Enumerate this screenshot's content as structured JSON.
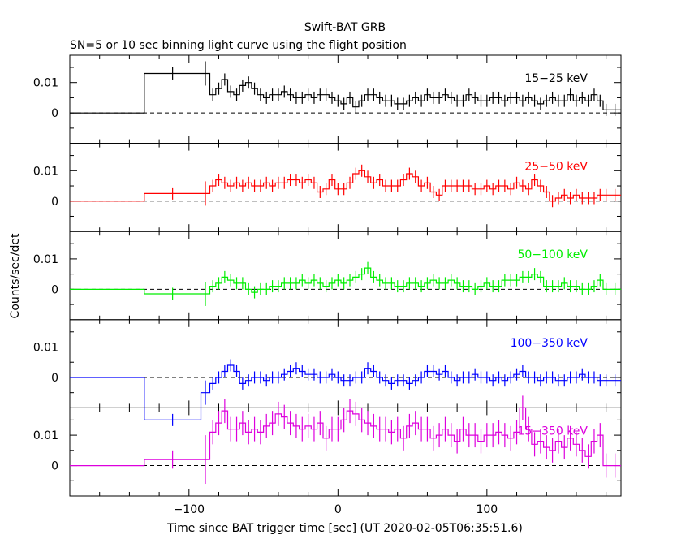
{
  "title": "Swift-BAT GRB",
  "subtitle": "SN=5 or 10 sec binning light curve using the flight position",
  "xlabel": "Time since BAT trigger time [sec] (UT 2020-02-05T06:35:51.6)",
  "ylabel": "Counts/sec/det",
  "chart_data": {
    "type": "line",
    "style": "step histogram with error bars, stacked panels",
    "xlim": [
      -180,
      190
    ],
    "x_ticks": [
      -100,
      0,
      100
    ],
    "x_tick_labels": [
      "−100",
      "0",
      "100"
    ],
    "panels": [
      {
        "name": "15−25 keV",
        "color": "#000000",
        "ylim": [
          -0.01,
          0.019
        ],
        "y_ticks": [
          0,
          0.01
        ],
        "y_tick_labels": [
          "0",
          "0.01"
        ],
        "edges": [
          -180,
          -130,
          -92,
          -86,
          -82,
          -78,
          -74,
          -70,
          -66,
          -62,
          -58,
          -54,
          -50,
          -46,
          -42,
          -38,
          -34,
          -30,
          -26,
          -22,
          -18,
          -14,
          -10,
          -6,
          -2,
          2,
          6,
          10,
          14,
          18,
          22,
          26,
          30,
          34,
          38,
          42,
          46,
          50,
          54,
          58,
          62,
          66,
          70,
          74,
          78,
          82,
          86,
          90,
          94,
          98,
          102,
          106,
          110,
          114,
          118,
          122,
          126,
          130,
          134,
          138,
          142,
          146,
          150,
          154,
          158,
          162,
          166,
          170,
          174,
          178,
          182,
          190
        ],
        "values": [
          0,
          0.013,
          0.013,
          0.006,
          0.008,
          0.011,
          0.007,
          0.006,
          0.009,
          0.01,
          0.008,
          0.006,
          0.005,
          0.006,
          0.006,
          0.007,
          0.006,
          0.005,
          0.005,
          0.006,
          0.005,
          0.006,
          0.006,
          0.005,
          0.004,
          0.003,
          0.005,
          0.002,
          0.004,
          0.006,
          0.006,
          0.005,
          0.004,
          0.004,
          0.003,
          0.003,
          0.004,
          0.005,
          0.004,
          0.006,
          0.005,
          0.005,
          0.006,
          0.005,
          0.004,
          0.004,
          0.006,
          0.005,
          0.004,
          0.004,
          0.005,
          0.005,
          0.004,
          0.005,
          0.005,
          0.004,
          0.005,
          0.004,
          0.003,
          0.004,
          0.005,
          0.004,
          0.004,
          0.006,
          0.004,
          0.005,
          0.004,
          0.006,
          0.004,
          0.001,
          0.001
        ],
        "errors": [
          0.002,
          0.002,
          0.004,
          0.002,
          0.002,
          0.002,
          0.002,
          0.002,
          0.002,
          0.002,
          0.002,
          0.002,
          0.002,
          0.002,
          0.002,
          0.002,
          0.002,
          0.002,
          0.002,
          0.002,
          0.002,
          0.002,
          0.002,
          0.002,
          0.002,
          0.002,
          0.002,
          0.002,
          0.002,
          0.002,
          0.002,
          0.002,
          0.002,
          0.002,
          0.002,
          0.002,
          0.002,
          0.002,
          0.002,
          0.002,
          0.002,
          0.002,
          0.002,
          0.002,
          0.002,
          0.002,
          0.002,
          0.002,
          0.002,
          0.002,
          0.002,
          0.002,
          0.002,
          0.002,
          0.002,
          0.002,
          0.002,
          0.002,
          0.002,
          0.002,
          0.002,
          0.002,
          0.002,
          0.002,
          0.002,
          0.002,
          0.002,
          0.002,
          0.002,
          0.002,
          0.002
        ]
      },
      {
        "name": "25−50 keV",
        "color": "#ff0000",
        "ylim": [
          -0.01,
          0.019
        ],
        "y_ticks": [
          0,
          0.01
        ],
        "y_tick_labels": [
          "0",
          "0.01"
        ],
        "edges": [
          -180,
          -130,
          -92,
          -86,
          -82,
          -78,
          -74,
          -70,
          -66,
          -62,
          -58,
          -54,
          -50,
          -46,
          -42,
          -38,
          -34,
          -30,
          -26,
          -22,
          -18,
          -14,
          -10,
          -6,
          -2,
          2,
          6,
          10,
          14,
          18,
          22,
          26,
          30,
          34,
          38,
          42,
          46,
          50,
          54,
          58,
          62,
          66,
          70,
          74,
          78,
          82,
          86,
          90,
          94,
          98,
          102,
          106,
          110,
          114,
          118,
          122,
          126,
          130,
          134,
          138,
          142,
          146,
          150,
          154,
          158,
          162,
          166,
          170,
          174,
          178,
          182,
          190
        ],
        "values": [
          0,
          0.0025,
          0.0025,
          0.005,
          0.007,
          0.006,
          0.005,
          0.006,
          0.005,
          0.006,
          0.005,
          0.005,
          0.006,
          0.005,
          0.006,
          0.006,
          0.007,
          0.007,
          0.006,
          0.007,
          0.006,
          0.003,
          0.004,
          0.007,
          0.004,
          0.004,
          0.006,
          0.009,
          0.01,
          0.008,
          0.006,
          0.007,
          0.005,
          0.005,
          0.005,
          0.007,
          0.009,
          0.008,
          0.005,
          0.006,
          0.003,
          0.002,
          0.005,
          0.005,
          0.005,
          0.005,
          0.005,
          0.004,
          0.004,
          0.005,
          0.004,
          0.005,
          0.005,
          0.004,
          0.006,
          0.005,
          0.004,
          0.007,
          0.005,
          0.003,
          0,
          0.001,
          0.002,
          0.001,
          0.002,
          0.001,
          0.001,
          0.001,
          0.002,
          0.002,
          0.002
        ],
        "errors": [
          0.002,
          0.002,
          0.004,
          0.002,
          0.002,
          0.002,
          0.002,
          0.002,
          0.002,
          0.002,
          0.002,
          0.002,
          0.002,
          0.002,
          0.002,
          0.002,
          0.002,
          0.002,
          0.002,
          0.002,
          0.002,
          0.002,
          0.002,
          0.002,
          0.002,
          0.002,
          0.002,
          0.002,
          0.002,
          0.002,
          0.002,
          0.002,
          0.002,
          0.002,
          0.002,
          0.002,
          0.002,
          0.002,
          0.002,
          0.002,
          0.002,
          0.002,
          0.002,
          0.002,
          0.002,
          0.002,
          0.002,
          0.002,
          0.002,
          0.002,
          0.002,
          0.002,
          0.002,
          0.002,
          0.002,
          0.002,
          0.002,
          0.002,
          0.002,
          0.002,
          0.002,
          0.002,
          0.002,
          0.002,
          0.002,
          0.002,
          0.002,
          0.002,
          0.002,
          0.002,
          0.002
        ]
      },
      {
        "name": "50−100 keV",
        "color": "#00ee00",
        "ylim": [
          -0.01,
          0.019
        ],
        "y_ticks": [
          0,
          0.01
        ],
        "y_tick_labels": [
          "0",
          "0.01"
        ],
        "edges": [
          -180,
          -130,
          -92,
          -86,
          -82,
          -78,
          -74,
          -70,
          -66,
          -62,
          -58,
          -54,
          -50,
          -46,
          -42,
          -38,
          -34,
          -30,
          -26,
          -22,
          -18,
          -14,
          -10,
          -6,
          -2,
          2,
          6,
          10,
          14,
          18,
          22,
          26,
          30,
          34,
          38,
          42,
          46,
          50,
          54,
          58,
          62,
          66,
          70,
          74,
          78,
          82,
          86,
          90,
          94,
          98,
          102,
          106,
          110,
          114,
          118,
          122,
          126,
          130,
          134,
          138,
          142,
          146,
          150,
          154,
          158,
          162,
          166,
          170,
          174,
          178,
          182,
          190
        ],
        "values": [
          0,
          -0.0015,
          -0.0015,
          0.001,
          0.002,
          0.004,
          0.003,
          0.002,
          0.002,
          0,
          -0.001,
          0,
          0,
          0.001,
          0.001,
          0.002,
          0.002,
          0.002,
          0.003,
          0.002,
          0.003,
          0.002,
          0.001,
          0.002,
          0.003,
          0.002,
          0.003,
          0.004,
          0.005,
          0.007,
          0.004,
          0.003,
          0.002,
          0.002,
          0.001,
          0.001,
          0.002,
          0.002,
          0.001,
          0.002,
          0.003,
          0.002,
          0.002,
          0.003,
          0.002,
          0.001,
          0.001,
          0,
          0.001,
          0.002,
          0.001,
          0.001,
          0.003,
          0.003,
          0.003,
          0.004,
          0.004,
          0.005,
          0.004,
          0.001,
          0.001,
          0.001,
          0.002,
          0.001,
          0.001,
          0,
          0,
          0.001,
          0.003,
          0,
          0
        ],
        "errors": [
          0.002,
          0.002,
          0.004,
          0.002,
          0.002,
          0.002,
          0.002,
          0.002,
          0.002,
          0.002,
          0.002,
          0.002,
          0.002,
          0.002,
          0.002,
          0.002,
          0.002,
          0.002,
          0.002,
          0.002,
          0.002,
          0.002,
          0.002,
          0.002,
          0.002,
          0.002,
          0.002,
          0.002,
          0.002,
          0.002,
          0.002,
          0.002,
          0.002,
          0.002,
          0.002,
          0.002,
          0.002,
          0.002,
          0.002,
          0.002,
          0.002,
          0.002,
          0.002,
          0.002,
          0.002,
          0.002,
          0.002,
          0.002,
          0.002,
          0.002,
          0.002,
          0.002,
          0.002,
          0.002,
          0.002,
          0.002,
          0.002,
          0.002,
          0.002,
          0.002,
          0.002,
          0.002,
          0.002,
          0.002,
          0.002,
          0.002,
          0.002,
          0.002,
          0.002,
          0.002,
          0.002
        ]
      },
      {
        "name": "100−350 keV",
        "color": "#0000ff",
        "ylim": [
          -0.01,
          0.019
        ],
        "y_ticks": [
          0,
          0.01
        ],
        "y_tick_labels": [
          "0",
          "0.01"
        ],
        "edges": [
          -180,
          -130,
          -92,
          -86,
          -82,
          -78,
          -74,
          -70,
          -66,
          -62,
          -58,
          -54,
          -50,
          -46,
          -42,
          -38,
          -34,
          -30,
          -26,
          -22,
          -18,
          -14,
          -10,
          -6,
          -2,
          2,
          6,
          10,
          14,
          18,
          22,
          26,
          30,
          34,
          38,
          42,
          46,
          50,
          54,
          58,
          62,
          66,
          70,
          74,
          78,
          82,
          86,
          90,
          94,
          98,
          102,
          106,
          110,
          114,
          118,
          122,
          126,
          130,
          134,
          138,
          142,
          146,
          150,
          154,
          158,
          162,
          166,
          170,
          174,
          178,
          182,
          190
        ],
        "values": [
          0,
          -0.014,
          -0.005,
          -0.002,
          0,
          0.002,
          0.004,
          0.002,
          -0.002,
          -0.001,
          0,
          0,
          -0.001,
          0,
          0,
          0.001,
          0.002,
          0.003,
          0.002,
          0.001,
          0.001,
          0,
          0,
          0.001,
          0,
          -0.001,
          -0.001,
          0,
          0,
          0.003,
          0.002,
          0,
          -0.001,
          -0.002,
          -0.001,
          -0.001,
          -0.002,
          -0.001,
          0,
          0.002,
          0.002,
          0.001,
          0.002,
          0,
          -0.001,
          0,
          0,
          0.001,
          0,
          0,
          -0.001,
          0,
          -0.001,
          0,
          0.001,
          0.002,
          0,
          0,
          -0.001,
          0,
          0,
          -0.001,
          -0.001,
          0,
          0,
          0.001,
          0,
          0,
          -0.001,
          -0.001,
          -0.001
        ],
        "errors": [
          0.002,
          0.002,
          0.004,
          0.002,
          0.002,
          0.002,
          0.002,
          0.002,
          0.002,
          0.002,
          0.002,
          0.002,
          0.002,
          0.002,
          0.002,
          0.002,
          0.002,
          0.002,
          0.002,
          0.002,
          0.002,
          0.002,
          0.002,
          0.002,
          0.002,
          0.002,
          0.002,
          0.002,
          0.002,
          0.002,
          0.002,
          0.002,
          0.002,
          0.002,
          0.002,
          0.002,
          0.002,
          0.002,
          0.002,
          0.002,
          0.002,
          0.002,
          0.002,
          0.002,
          0.002,
          0.002,
          0.002,
          0.002,
          0.002,
          0.002,
          0.002,
          0.002,
          0.002,
          0.002,
          0.002,
          0.002,
          0.002,
          0.002,
          0.002,
          0.002,
          0.002,
          0.002,
          0.002,
          0.002,
          0.002,
          0.002,
          0.002,
          0.002,
          0.002,
          0.002,
          0.002
        ]
      },
      {
        "name": "15−350 keV",
        "color": "#dd00dd",
        "ylim": [
          -0.01,
          0.019
        ],
        "y_ticks": [
          0,
          0.01
        ],
        "y_tick_labels": [
          "0",
          "0.01"
        ],
        "edges": [
          -180,
          -130,
          -92,
          -86,
          -82,
          -78,
          -74,
          -70,
          -66,
          -62,
          -58,
          -54,
          -50,
          -46,
          -42,
          -38,
          -34,
          -30,
          -26,
          -22,
          -18,
          -14,
          -10,
          -6,
          -2,
          2,
          6,
          10,
          14,
          18,
          22,
          26,
          30,
          34,
          38,
          42,
          46,
          50,
          54,
          58,
          62,
          66,
          70,
          74,
          78,
          82,
          86,
          90,
          94,
          98,
          102,
          106,
          110,
          114,
          118,
          122,
          126,
          130,
          134,
          138,
          142,
          146,
          150,
          154,
          158,
          162,
          166,
          170,
          174,
          178,
          182,
          190
        ],
        "values": [
          0,
          0.002,
          0.002,
          0.011,
          0.014,
          0.018,
          0.012,
          0.012,
          0.014,
          0.011,
          0.012,
          0.011,
          0.013,
          0.014,
          0.017,
          0.016,
          0.014,
          0.013,
          0.012,
          0.013,
          0.012,
          0.014,
          0.009,
          0.012,
          0.012,
          0.015,
          0.018,
          0.017,
          0.015,
          0.014,
          0.013,
          0.012,
          0.012,
          0.011,
          0.012,
          0.009,
          0.013,
          0.014,
          0.012,
          0.012,
          0.009,
          0.01,
          0.012,
          0.01,
          0.008,
          0.012,
          0.01,
          0.01,
          0.008,
          0.01,
          0.01,
          0.011,
          0.01,
          0.009,
          0.011,
          0.019,
          0.012,
          0.007,
          0.008,
          0.006,
          0.005,
          0.008,
          0.006,
          0.009,
          0.007,
          0.005,
          0.003,
          0.008,
          0.01,
          0,
          0
        ],
        "errors": [
          0.003,
          0.003,
          0.008,
          0.004,
          0.004,
          0.004,
          0.004,
          0.004,
          0.004,
          0.004,
          0.004,
          0.004,
          0.004,
          0.004,
          0.004,
          0.004,
          0.004,
          0.004,
          0.004,
          0.004,
          0.004,
          0.004,
          0.004,
          0.004,
          0.004,
          0.004,
          0.004,
          0.004,
          0.004,
          0.004,
          0.004,
          0.004,
          0.004,
          0.004,
          0.004,
          0.004,
          0.004,
          0.004,
          0.004,
          0.004,
          0.004,
          0.004,
          0.004,
          0.004,
          0.004,
          0.004,
          0.004,
          0.004,
          0.004,
          0.004,
          0.004,
          0.004,
          0.004,
          0.004,
          0.004,
          0.004,
          0.004,
          0.004,
          0.004,
          0.004,
          0.004,
          0.004,
          0.004,
          0.004,
          0.004,
          0.004,
          0.004,
          0.004,
          0.004,
          0.004,
          0.004
        ]
      }
    ]
  }
}
